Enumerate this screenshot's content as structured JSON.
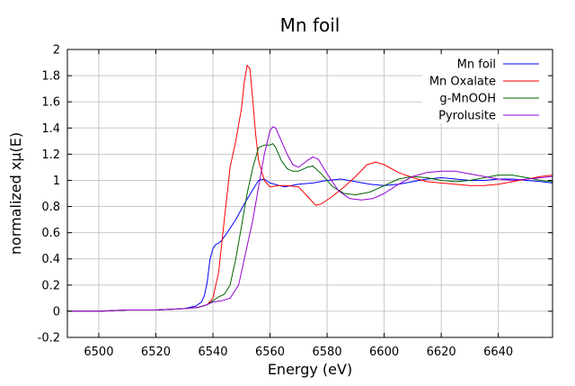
{
  "chart_data": {
    "type": "line",
    "title": "Mn foil",
    "xlabel": "Energy    (eV)",
    "ylabel": "normalized xμ(E)",
    "xlim": [
      6489,
      6659
    ],
    "ylim": [
      -0.2,
      2.0
    ],
    "xticks": [
      6500,
      6520,
      6540,
      6560,
      6580,
      6600,
      6620,
      6640
    ],
    "yticks": [
      -0.2,
      0,
      0.2,
      0.4,
      0.6,
      0.8,
      1,
      1.2,
      1.4,
      1.6,
      1.8,
      2
    ],
    "grid": true,
    "legend_position": "top-right",
    "series": [
      {
        "name": "Mn foil",
        "color": "#0000ff",
        "x": [
          6489,
          6500,
          6510,
          6520,
          6530,
          6534,
          6536,
          6537,
          6538,
          6539,
          6540,
          6541,
          6542,
          6543,
          6545,
          6548,
          6551,
          6554,
          6556,
          6558,
          6560,
          6565,
          6570,
          6575,
          6580,
          6585,
          6590,
          6595,
          6600,
          6605,
          6610,
          6615,
          6620,
          6625,
          6630,
          6635,
          6640,
          6645,
          6650,
          6655,
          6659
        ],
        "y": [
          0.0,
          0.0,
          0.01,
          0.01,
          0.02,
          0.04,
          0.07,
          0.12,
          0.22,
          0.4,
          0.48,
          0.51,
          0.52,
          0.54,
          0.6,
          0.7,
          0.82,
          0.93,
          1.0,
          1.01,
          0.98,
          0.95,
          0.97,
          0.98,
          1.0,
          1.01,
          0.99,
          0.97,
          0.96,
          0.97,
          0.99,
          1.01,
          1.02,
          1.01,
          1.0,
          1.0,
          1.01,
          1.01,
          1.0,
          0.99,
          0.98
        ]
      },
      {
        "name": "Mn Oxalate",
        "color": "#ff0000",
        "x": [
          6489,
          6500,
          6510,
          6520,
          6530,
          6535,
          6538,
          6540,
          6542,
          6544,
          6546,
          6548,
          6550,
          6551,
          6552,
          6553,
          6554,
          6555,
          6556,
          6558,
          6560,
          6563,
          6566,
          6570,
          6573,
          6576,
          6578,
          6582,
          6586,
          6590,
          6594,
          6597,
          6600,
          6605,
          6610,
          6615,
          6620,
          6625,
          6630,
          6635,
          6640,
          6645,
          6650,
          6655,
          6659
        ],
        "y": [
          0.0,
          0.0,
          0.01,
          0.01,
          0.02,
          0.03,
          0.05,
          0.1,
          0.3,
          0.7,
          1.1,
          1.3,
          1.55,
          1.75,
          1.88,
          1.85,
          1.6,
          1.35,
          1.15,
          1.0,
          0.95,
          0.96,
          0.96,
          0.95,
          0.88,
          0.81,
          0.82,
          0.88,
          0.95,
          1.03,
          1.12,
          1.14,
          1.12,
          1.06,
          1.02,
          0.99,
          0.98,
          0.97,
          0.96,
          0.96,
          0.97,
          0.99,
          1.01,
          1.03,
          1.04
        ]
      },
      {
        "name": "g-MnOOH",
        "color": "#006400",
        "x": [
          6489,
          6500,
          6510,
          6520,
          6530,
          6535,
          6538,
          6540,
          6542,
          6544,
          6546,
          6548,
          6550,
          6552,
          6554,
          6556,
          6558,
          6560,
          6561,
          6562,
          6564,
          6566,
          6568,
          6570,
          6573,
          6575,
          6578,
          6582,
          6586,
          6590,
          6595,
          6600,
          6605,
          6610,
          6615,
          6620,
          6625,
          6630,
          6635,
          6640,
          6645,
          6650,
          6655,
          6659
        ],
        "y": [
          0.0,
          0.0,
          0.01,
          0.01,
          0.02,
          0.03,
          0.05,
          0.08,
          0.11,
          0.13,
          0.2,
          0.4,
          0.65,
          0.9,
          1.1,
          1.25,
          1.27,
          1.27,
          1.28,
          1.25,
          1.15,
          1.09,
          1.07,
          1.07,
          1.1,
          1.11,
          1.05,
          0.95,
          0.9,
          0.89,
          0.91,
          0.96,
          1.01,
          1.03,
          1.02,
          1.0,
          0.99,
          1.0,
          1.02,
          1.04,
          1.04,
          1.02,
          1.0,
          0.99
        ]
      },
      {
        "name": "Pyrolusite",
        "color": "#9400d3",
        "x": [
          6489,
          6500,
          6510,
          6520,
          6530,
          6535,
          6538,
          6540,
          6543,
          6546,
          6549,
          6552,
          6554,
          6556,
          6558,
          6560,
          6561,
          6562,
          6564,
          6566,
          6568,
          6570,
          6573,
          6575,
          6577,
          6580,
          6584,
          6588,
          6592,
          6596,
          6600,
          6605,
          6610,
          6615,
          6620,
          6625,
          6630,
          6635,
          6640,
          6645,
          6650,
          6655,
          6659
        ],
        "y": [
          0.0,
          0.0,
          0.01,
          0.01,
          0.02,
          0.03,
          0.05,
          0.07,
          0.08,
          0.1,
          0.2,
          0.5,
          0.7,
          0.95,
          1.2,
          1.38,
          1.41,
          1.4,
          1.3,
          1.2,
          1.12,
          1.1,
          1.15,
          1.18,
          1.16,
          1.05,
          0.92,
          0.86,
          0.85,
          0.86,
          0.9,
          0.97,
          1.03,
          1.06,
          1.07,
          1.07,
          1.05,
          1.03,
          1.01,
          1.0,
          1.01,
          1.02,
          1.03
        ]
      }
    ]
  }
}
